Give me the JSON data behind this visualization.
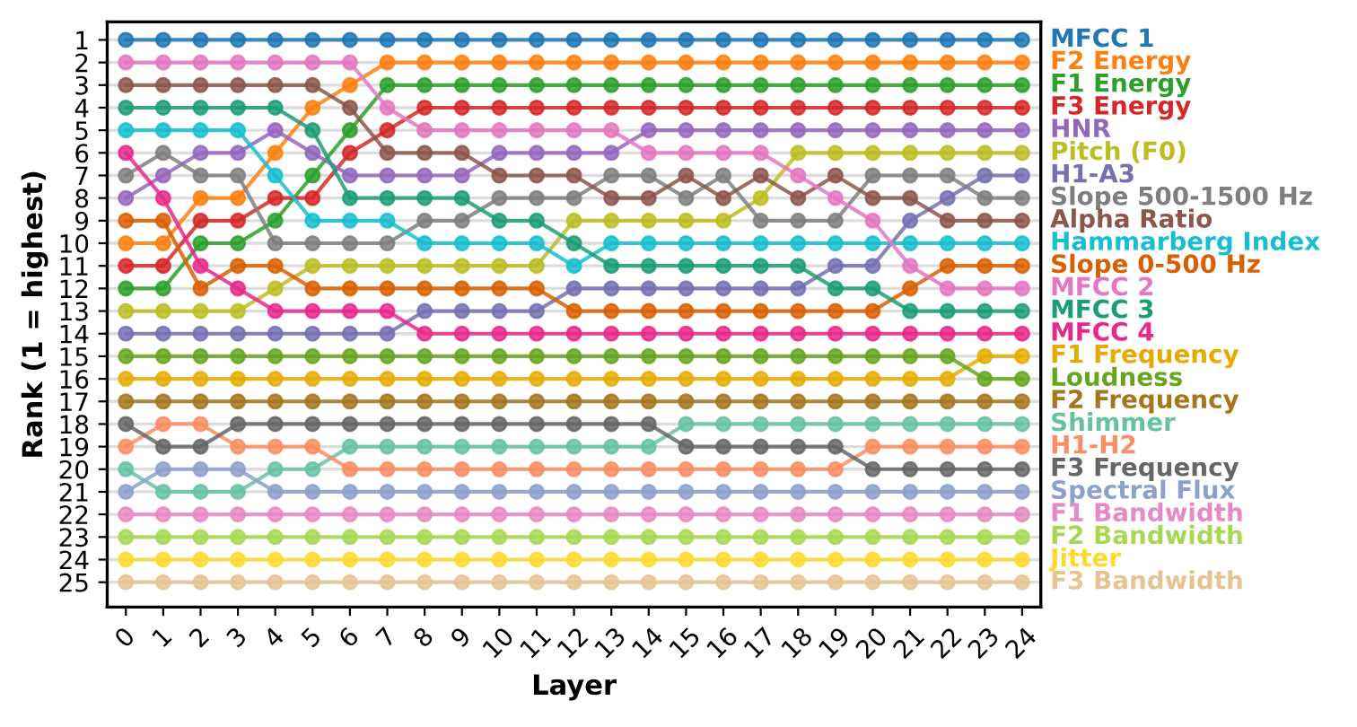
{
  "chart_data": {
    "type": "line",
    "xlabel": "Layer",
    "ylabel": "Rank (1 = highest)",
    "x": [
      0,
      1,
      2,
      3,
      4,
      5,
      6,
      7,
      8,
      9,
      10,
      11,
      12,
      13,
      14,
      15,
      16,
      17,
      18,
      19,
      20,
      21,
      22,
      23,
      24
    ],
    "xlim": [
      -0.5,
      24.5
    ],
    "ylim": [
      26.1,
      0.2
    ],
    "xticks": [
      0,
      1,
      2,
      3,
      4,
      5,
      6,
      7,
      8,
      9,
      10,
      11,
      12,
      13,
      14,
      15,
      16,
      17,
      18,
      19,
      20,
      21,
      22,
      23,
      24
    ],
    "yticks": [
      1,
      2,
      3,
      4,
      5,
      6,
      7,
      8,
      9,
      10,
      11,
      12,
      13,
      14,
      15,
      16,
      17,
      18,
      19,
      20,
      21,
      22,
      23,
      24,
      25
    ],
    "grid": "y",
    "marker": "circle",
    "line_style": "solid",
    "series": [
      {
        "name": "MFCC 1",
        "color": "#1f77b4",
        "values": [
          1,
          1,
          1,
          1,
          1,
          1,
          1,
          1,
          1,
          1,
          1,
          1,
          1,
          1,
          1,
          1,
          1,
          1,
          1,
          1,
          1,
          1,
          1,
          1,
          1
        ]
      },
      {
        "name": "F2 Energy",
        "color": "#ff7f0e",
        "values": [
          10,
          10,
          8,
          8,
          6,
          4,
          3,
          2,
          2,
          2,
          2,
          2,
          2,
          2,
          2,
          2,
          2,
          2,
          2,
          2,
          2,
          2,
          2,
          2,
          2
        ]
      },
      {
        "name": "F1 Energy",
        "color": "#2ca02c",
        "values": [
          12,
          12,
          10,
          10,
          9,
          7,
          5,
          3,
          3,
          3,
          3,
          3,
          3,
          3,
          3,
          3,
          3,
          3,
          3,
          3,
          3,
          3,
          3,
          3,
          3
        ]
      },
      {
        "name": "F3 Energy",
        "color": "#d62728",
        "values": [
          11,
          11,
          9,
          9,
          8,
          8,
          6,
          5,
          4,
          4,
          4,
          4,
          4,
          4,
          4,
          4,
          4,
          4,
          4,
          4,
          4,
          4,
          4,
          4,
          4
        ]
      },
      {
        "name": "HNR",
        "color": "#9467bd",
        "values": [
          8,
          7,
          6,
          6,
          5,
          6,
          7,
          7,
          7,
          7,
          6,
          6,
          6,
          6,
          5,
          5,
          5,
          5,
          5,
          5,
          5,
          5,
          5,
          5,
          5
        ]
      },
      {
        "name": "Pitch (F0)",
        "color": "#bcbd22",
        "values": [
          13,
          13,
          13,
          13,
          12,
          11,
          11,
          11,
          11,
          11,
          11,
          11,
          9,
          9,
          9,
          9,
          9,
          8,
          6,
          6,
          6,
          6,
          6,
          6,
          6
        ]
      },
      {
        "name": "H1-A3",
        "color": "#7570b3",
        "values": [
          14,
          14,
          14,
          14,
          14,
          14,
          14,
          14,
          13,
          13,
          13,
          13,
          12,
          12,
          12,
          12,
          12,
          12,
          12,
          11,
          11,
          9,
          8,
          7,
          7
        ]
      },
      {
        "name": "Slope 500-1500 Hz",
        "color": "#7f7f7f",
        "values": [
          7,
          6,
          7,
          7,
          10,
          10,
          10,
          10,
          9,
          9,
          8,
          8,
          8,
          7,
          7,
          8,
          7,
          9,
          9,
          9,
          7,
          7,
          7,
          8,
          8
        ]
      },
      {
        "name": "Alpha Ratio",
        "color": "#8c564b",
        "values": [
          3,
          3,
          3,
          3,
          3,
          3,
          4,
          6,
          6,
          6,
          7,
          7,
          7,
          8,
          8,
          7,
          8,
          7,
          8,
          7,
          8,
          8,
          9,
          9,
          9
        ]
      },
      {
        "name": "Hammarberg Index",
        "color": "#17becf",
        "values": [
          5,
          5,
          5,
          5,
          7,
          9,
          9,
          9,
          10,
          10,
          10,
          10,
          11,
          10,
          10,
          10,
          10,
          10,
          10,
          10,
          10,
          10,
          10,
          10,
          10
        ]
      },
      {
        "name": "Slope 0-500 Hz",
        "color": "#d95f02",
        "values": [
          9,
          9,
          12,
          11,
          11,
          12,
          12,
          12,
          12,
          12,
          12,
          12,
          13,
          13,
          13,
          13,
          13,
          13,
          13,
          13,
          13,
          12,
          11,
          11,
          11
        ]
      },
      {
        "name": "MFCC 2",
        "color": "#e377c2",
        "values": [
          2,
          2,
          2,
          2,
          2,
          2,
          2,
          4,
          5,
          5,
          5,
          5,
          5,
          5,
          6,
          6,
          6,
          6,
          7,
          8,
          9,
          11,
          12,
          12,
          12
        ]
      },
      {
        "name": "MFCC 3",
        "color": "#1b9e77",
        "values": [
          4,
          4,
          4,
          4,
          4,
          5,
          8,
          8,
          8,
          8,
          9,
          9,
          10,
          11,
          11,
          11,
          11,
          11,
          11,
          12,
          12,
          13,
          13,
          13,
          13
        ]
      },
      {
        "name": "MFCC 4",
        "color": "#e7298a",
        "values": [
          6,
          8,
          11,
          12,
          13,
          13,
          13,
          13,
          14,
          14,
          14,
          14,
          14,
          14,
          14,
          14,
          14,
          14,
          14,
          14,
          14,
          14,
          14,
          14,
          14
        ]
      },
      {
        "name": "F1 Frequency",
        "color": "#e6ab02",
        "values": [
          16,
          16,
          16,
          16,
          16,
          16,
          16,
          16,
          16,
          16,
          16,
          16,
          16,
          16,
          16,
          16,
          16,
          16,
          16,
          16,
          16,
          16,
          16,
          15,
          15
        ]
      },
      {
        "name": "Loudness",
        "color": "#66a61e",
        "values": [
          15,
          15,
          15,
          15,
          15,
          15,
          15,
          15,
          15,
          15,
          15,
          15,
          15,
          15,
          15,
          15,
          15,
          15,
          15,
          15,
          15,
          15,
          15,
          16,
          16
        ]
      },
      {
        "name": "F2 Frequency",
        "color": "#a6761d",
        "values": [
          17,
          17,
          17,
          17,
          17,
          17,
          17,
          17,
          17,
          17,
          17,
          17,
          17,
          17,
          17,
          17,
          17,
          17,
          17,
          17,
          17,
          17,
          17,
          17,
          17
        ]
      },
      {
        "name": "Shimmer",
        "color": "#66c2a5",
        "values": [
          20,
          21,
          21,
          21,
          20,
          20,
          19,
          19,
          19,
          19,
          19,
          19,
          19,
          19,
          19,
          18,
          18,
          18,
          18,
          18,
          18,
          18,
          18,
          18,
          18
        ]
      },
      {
        "name": "H1-H2",
        "color": "#fc8d62",
        "values": [
          19,
          18,
          18,
          19,
          19,
          19,
          20,
          20,
          20,
          20,
          20,
          20,
          20,
          20,
          20,
          20,
          20,
          20,
          20,
          20,
          19,
          19,
          19,
          19,
          19
        ]
      },
      {
        "name": "F3 Frequency",
        "color": "#666666",
        "values": [
          18,
          19,
          19,
          18,
          18,
          18,
          18,
          18,
          18,
          18,
          18,
          18,
          18,
          18,
          18,
          19,
          19,
          19,
          19,
          19,
          20,
          20,
          20,
          20,
          20
        ]
      },
      {
        "name": "Spectral Flux",
        "color": "#8da0cb",
        "values": [
          21,
          20,
          20,
          20,
          21,
          21,
          21,
          21,
          21,
          21,
          21,
          21,
          21,
          21,
          21,
          21,
          21,
          21,
          21,
          21,
          21,
          21,
          21,
          21,
          21
        ]
      },
      {
        "name": "F1 Bandwidth",
        "color": "#e78ac3",
        "values": [
          22,
          22,
          22,
          22,
          22,
          22,
          22,
          22,
          22,
          22,
          22,
          22,
          22,
          22,
          22,
          22,
          22,
          22,
          22,
          22,
          22,
          22,
          22,
          22,
          22
        ]
      },
      {
        "name": "F2 Bandwidth",
        "color": "#a6d854",
        "values": [
          23,
          23,
          23,
          23,
          23,
          23,
          23,
          23,
          23,
          23,
          23,
          23,
          23,
          23,
          23,
          23,
          23,
          23,
          23,
          23,
          23,
          23,
          23,
          23,
          23
        ]
      },
      {
        "name": "Jitter",
        "color": "#ffd92f",
        "values": [
          24,
          24,
          24,
          24,
          24,
          24,
          24,
          24,
          24,
          24,
          24,
          24,
          24,
          24,
          24,
          24,
          24,
          24,
          24,
          24,
          24,
          24,
          24,
          24,
          24
        ]
      },
      {
        "name": "F3 Bandwidth",
        "color": "#e5c494",
        "values": [
          25,
          25,
          25,
          25,
          25,
          25,
          25,
          25,
          25,
          25,
          25,
          25,
          25,
          25,
          25,
          25,
          25,
          25,
          25,
          25,
          25,
          25,
          25,
          25,
          25
        ]
      }
    ]
  }
}
